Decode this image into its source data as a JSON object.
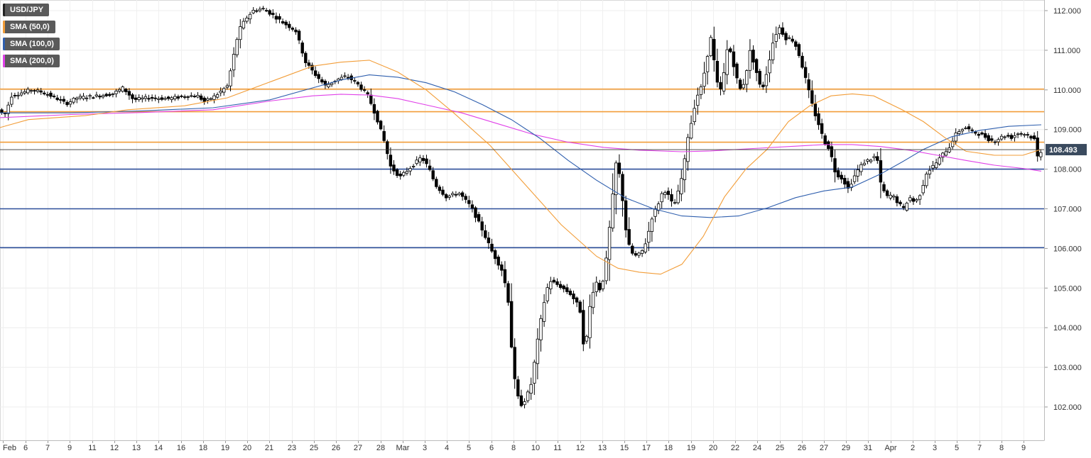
{
  "legend": [
    {
      "label": "USD/JPY",
      "color": "#222222"
    },
    {
      "label": "SMA (50,0)",
      "color": "#f29d38"
    },
    {
      "label": "SMA (100,0)",
      "color": "#2f5fae"
    },
    {
      "label": "SMA (200,0)",
      "color": "#e040e8"
    }
  ],
  "chart_data": {
    "type": "candlestick",
    "symbol": "USD/JPY",
    "ylim": [
      101.3,
      112.25
    ],
    "y_ticks": [
      "112.000",
      "111.000",
      "110.000",
      "109.000",
      "108.000",
      "107.000",
      "106.000",
      "105.000",
      "104.000",
      "103.000",
      "102.000"
    ],
    "x_labels": [
      "Feb",
      "6",
      "7",
      "9",
      "11",
      "12",
      "13",
      "14",
      "16",
      "18",
      "19",
      "20",
      "21",
      "23",
      "25",
      "26",
      "27",
      "28",
      "Mar",
      "3",
      "4",
      "5",
      "6",
      "8",
      "10",
      "11",
      "12",
      "13",
      "15",
      "17",
      "18",
      "19",
      "20",
      "22",
      "24",
      "25",
      "26",
      "27",
      "29",
      "31",
      "Apr",
      "2",
      "3",
      "5",
      "7",
      "8",
      "9"
    ],
    "last_price": "108.493",
    "grid": true,
    "horizontal_levels": [
      {
        "value": 110.02,
        "color": "#f29d38"
      },
      {
        "value": 109.45,
        "color": "#f29d38"
      },
      {
        "value": 108.68,
        "color": "#f29d38"
      },
      {
        "value": 108.0,
        "color": "#2d4f9a"
      },
      {
        "value": 107.0,
        "color": "#2d4f9a"
      },
      {
        "value": 106.02,
        "color": "#2d4f9a"
      }
    ],
    "price_path": [
      [
        0,
        109.5
      ],
      [
        8,
        109.35
      ],
      [
        18,
        109.85
      ],
      [
        45,
        110.0
      ],
      [
        60,
        109.95
      ],
      [
        80,
        109.8
      ],
      [
        95,
        109.65
      ],
      [
        110,
        109.8
      ],
      [
        140,
        109.85
      ],
      [
        160,
        109.9
      ],
      [
        175,
        110.05
      ],
      [
        190,
        109.75
      ],
      [
        210,
        109.8
      ],
      [
        240,
        109.78
      ],
      [
        265,
        109.85
      ],
      [
        280,
        109.85
      ],
      [
        290,
        109.7
      ],
      [
        305,
        109.85
      ],
      [
        322,
        110.1
      ],
      [
        330,
        110.8
      ],
      [
        338,
        111.5
      ],
      [
        348,
        111.8
      ],
      [
        358,
        112.0
      ],
      [
        372,
        112.05
      ],
      [
        385,
        111.9
      ],
      [
        400,
        111.7
      ],
      [
        418,
        111.5
      ],
      [
        432,
        110.7
      ],
      [
        445,
        110.4
      ],
      [
        460,
        110.1
      ],
      [
        475,
        110.25
      ],
      [
        490,
        110.35
      ],
      [
        505,
        110.15
      ],
      [
        520,
        109.85
      ],
      [
        532,
        109.3
      ],
      [
        542,
        108.75
      ],
      [
        552,
        108.05
      ],
      [
        565,
        107.8
      ],
      [
        580,
        108.05
      ],
      [
        595,
        108.3
      ],
      [
        605,
        108.05
      ],
      [
        615,
        107.6
      ],
      [
        630,
        107.3
      ],
      [
        648,
        107.4
      ],
      [
        665,
        107.05
      ],
      [
        680,
        106.5
      ],
      [
        695,
        105.9
      ],
      [
        710,
        105.4
      ],
      [
        718,
        104.6
      ],
      [
        722,
        103.5
      ],
      [
        728,
        102.4
      ],
      [
        735,
        102.05
      ],
      [
        742,
        102.2
      ],
      [
        750,
        102.6
      ],
      [
        758,
        103.6
      ],
      [
        766,
        104.5
      ],
      [
        775,
        105.2
      ],
      [
        790,
        105.05
      ],
      [
        805,
        104.85
      ],
      [
        818,
        104.5
      ],
      [
        825,
        103.3
      ],
      [
        832,
        104.5
      ],
      [
        840,
        105.2
      ],
      [
        848,
        104.9
      ],
      [
        856,
        105.8
      ],
      [
        862,
        106.9
      ],
      [
        870,
        108.3
      ],
      [
        876,
        107.6
      ],
      [
        884,
        106.3
      ],
      [
        890,
        105.9
      ],
      [
        898,
        105.8
      ],
      [
        905,
        105.9
      ],
      [
        912,
        106.2
      ],
      [
        920,
        106.8
      ],
      [
        928,
        107.1
      ],
      [
        936,
        107.5
      ],
      [
        944,
        107.3
      ],
      [
        950,
        107.05
      ],
      [
        958,
        107.5
      ],
      [
        964,
        108.0
      ],
      [
        970,
        108.8
      ],
      [
        976,
        109.25
      ],
      [
        982,
        109.8
      ],
      [
        990,
        110.1
      ],
      [
        997,
        110.8
      ],
      [
        1003,
        111.35
      ],
      [
        1010,
        110.3
      ],
      [
        1015,
        109.9
      ],
      [
        1020,
        110.3
      ],
      [
        1027,
        111.2
      ],
      [
        1035,
        110.6
      ],
      [
        1043,
        110.0
      ],
      [
        1050,
        110.2
      ],
      [
        1058,
        111.0
      ],
      [
        1066,
        110.5
      ],
      [
        1074,
        109.95
      ],
      [
        1082,
        110.5
      ],
      [
        1090,
        111.2
      ],
      [
        1098,
        111.6
      ],
      [
        1108,
        111.3
      ],
      [
        1116,
        111.3
      ],
      [
        1124,
        111.05
      ],
      [
        1132,
        110.55
      ],
      [
        1140,
        110.0
      ],
      [
        1147,
        109.5
      ],
      [
        1155,
        109.1
      ],
      [
        1162,
        108.7
      ],
      [
        1170,
        108.5
      ],
      [
        1178,
        107.9
      ],
      [
        1188,
        107.75
      ],
      [
        1196,
        107.5
      ],
      [
        1204,
        107.8
      ],
      [
        1212,
        108.05
      ],
      [
        1220,
        108.2
      ],
      [
        1228,
        108.25
      ],
      [
        1236,
        108.35
      ],
      [
        1242,
        107.6
      ],
      [
        1250,
        107.3
      ],
      [
        1258,
        107.35
      ],
      [
        1266,
        107.15
      ],
      [
        1274,
        107.0
      ],
      [
        1282,
        107.3
      ],
      [
        1290,
        107.15
      ],
      [
        1298,
        107.4
      ],
      [
        1306,
        107.9
      ],
      [
        1314,
        108.05
      ],
      [
        1322,
        108.2
      ],
      [
        1330,
        108.4
      ],
      [
        1338,
        108.55
      ],
      [
        1346,
        108.85
      ],
      [
        1354,
        109.0
      ],
      [
        1362,
        109.05
      ],
      [
        1370,
        108.95
      ],
      [
        1378,
        108.9
      ],
      [
        1386,
        108.85
      ],
      [
        1394,
        108.75
      ],
      [
        1402,
        108.7
      ],
      [
        1410,
        108.8
      ],
      [
        1418,
        108.85
      ],
      [
        1426,
        108.8
      ],
      [
        1434,
        108.9
      ],
      [
        1442,
        108.9
      ],
      [
        1450,
        108.85
      ],
      [
        1458,
        108.75
      ],
      [
        1462,
        108.3
      ],
      [
        1466,
        108.45
      ]
    ],
    "sma50_path": [
      [
        0,
        109.05
      ],
      [
        40,
        109.25
      ],
      [
        120,
        109.35
      ],
      [
        180,
        109.5
      ],
      [
        260,
        109.6
      ],
      [
        320,
        109.8
      ],
      [
        380,
        110.2
      ],
      [
        440,
        110.6
      ],
      [
        480,
        110.7
      ],
      [
        520,
        110.75
      ],
      [
        560,
        110.45
      ],
      [
        600,
        110.0
      ],
      [
        640,
        109.4
      ],
      [
        690,
        108.6
      ],
      [
        740,
        107.6
      ],
      [
        790,
        106.6
      ],
      [
        840,
        105.8
      ],
      [
        870,
        105.5
      ],
      [
        900,
        105.4
      ],
      [
        930,
        105.35
      ],
      [
        960,
        105.6
      ],
      [
        990,
        106.3
      ],
      [
        1020,
        107.3
      ],
      [
        1050,
        108.0
      ],
      [
        1080,
        108.5
      ],
      [
        1110,
        109.2
      ],
      [
        1140,
        109.6
      ],
      [
        1170,
        109.85
      ],
      [
        1200,
        109.9
      ],
      [
        1230,
        109.85
      ],
      [
        1270,
        109.5
      ],
      [
        1300,
        109.2
      ],
      [
        1330,
        108.8
      ],
      [
        1360,
        108.45
      ],
      [
        1400,
        108.35
      ],
      [
        1440,
        108.35
      ],
      [
        1466,
        108.5
      ]
    ],
    "sma100_path": [
      [
        0,
        109.42
      ],
      [
        100,
        109.42
      ],
      [
        200,
        109.47
      ],
      [
        300,
        109.55
      ],
      [
        380,
        109.75
      ],
      [
        440,
        110.05
      ],
      [
        480,
        110.25
      ],
      [
        520,
        110.38
      ],
      [
        560,
        110.32
      ],
      [
        600,
        110.18
      ],
      [
        640,
        109.95
      ],
      [
        680,
        109.62
      ],
      [
        720,
        109.25
      ],
      [
        760,
        108.78
      ],
      [
        800,
        108.22
      ],
      [
        840,
        107.72
      ],
      [
        880,
        107.28
      ],
      [
        920,
        107.0
      ],
      [
        960,
        106.82
      ],
      [
        1000,
        106.78
      ],
      [
        1040,
        106.82
      ],
      [
        1080,
        107.02
      ],
      [
        1120,
        107.28
      ],
      [
        1160,
        107.45
      ],
      [
        1200,
        107.55
      ],
      [
        1240,
        107.88
      ],
      [
        1270,
        108.18
      ],
      [
        1300,
        108.5
      ],
      [
        1340,
        108.82
      ],
      [
        1380,
        108.98
      ],
      [
        1420,
        109.08
      ],
      [
        1466,
        109.12
      ]
    ],
    "sma200_path": [
      [
        0,
        109.3
      ],
      [
        100,
        109.38
      ],
      [
        200,
        109.43
      ],
      [
        300,
        109.5
      ],
      [
        380,
        109.72
      ],
      [
        440,
        109.85
      ],
      [
        480,
        109.89
      ],
      [
        520,
        109.87
      ],
      [
        560,
        109.78
      ],
      [
        600,
        109.62
      ],
      [
        650,
        109.42
      ],
      [
        700,
        109.15
      ],
      [
        750,
        108.88
      ],
      [
        800,
        108.68
      ],
      [
        850,
        108.55
      ],
      [
        900,
        108.48
      ],
      [
        960,
        108.44
      ],
      [
        1000,
        108.46
      ],
      [
        1060,
        108.52
      ],
      [
        1120,
        108.58
      ],
      [
        1160,
        108.62
      ],
      [
        1200,
        108.62
      ],
      [
        1240,
        108.57
      ],
      [
        1280,
        108.48
      ],
      [
        1320,
        108.35
      ],
      [
        1360,
        108.22
      ],
      [
        1400,
        108.1
      ],
      [
        1440,
        108.02
      ],
      [
        1466,
        107.95
      ]
    ]
  }
}
